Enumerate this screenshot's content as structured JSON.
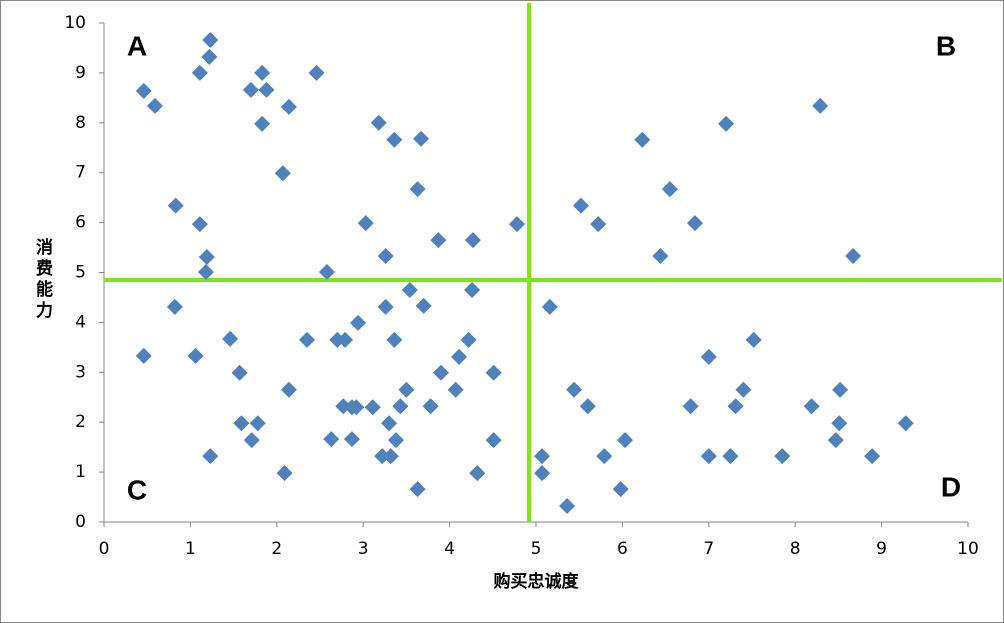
{
  "chart_data": {
    "type": "scatter",
    "xlabel": "购买忠诚度",
    "ylabel": "消费能力",
    "xlim": [
      0,
      10
    ],
    "ylim": [
      0,
      10
    ],
    "xticks": [
      0,
      1,
      2,
      3,
      4,
      5,
      6,
      7,
      8,
      9,
      10
    ],
    "yticks": [
      0,
      1,
      2,
      3,
      4,
      5,
      6,
      7,
      8,
      9,
      10
    ],
    "grid": false,
    "color": "#4f81bd",
    "reference_lines": {
      "x": 4.92,
      "y": 4.85,
      "color": "#80e31f"
    },
    "annotations": [
      {
        "text": "A",
        "corner": "top-left"
      },
      {
        "text": "B",
        "corner": "top-right"
      },
      {
        "text": "C",
        "corner": "bottom-left"
      },
      {
        "text": "D",
        "corner": "bottom-right"
      }
    ],
    "annotation_color": "#ffc000",
    "x": [
      1.23,
      1.22,
      0.46,
      0.59,
      1.11,
      1.83,
      1.7,
      1.88,
      2.14,
      1.83,
      2.46,
      3.18,
      3.36,
      3.67,
      2.07,
      0.83,
      1.11,
      1.19,
      1.18,
      2.58,
      3.03,
      3.26,
      3.63,
      3.87,
      4.27,
      4.78,
      3.54,
      3.7,
      4.26,
      3.26,
      0.82,
      0.46,
      1.06,
      1.46,
      2.35,
      2.7,
      2.79,
      2.94,
      3.36,
      4.22,
      4.11,
      3.9,
      4.51,
      1.57,
      2.14,
      3.5,
      4.07,
      3.43,
      3.78,
      2.77,
      2.87,
      2.92,
      3.11,
      1.59,
      1.78,
      3.3,
      1.71,
      2.63,
      2.87,
      3.38,
      4.51,
      1.23,
      3.22,
      3.32,
      2.09,
      4.32,
      3.63,
      5.07,
      5.07,
      5.16,
      5.36,
      5.44,
      5.6,
      5.79,
      6.03,
      5.98,
      5.52,
      5.72,
      6.23,
      6.55,
      6.44,
      6.84,
      7.2,
      8.29,
      8.67,
      7.0,
      7.52,
      7.4,
      7.31,
      6.79,
      7.0,
      7.25,
      7.85,
      8.19,
      8.52,
      8.51,
      8.47,
      8.89,
      9.28
    ],
    "values": [
      9.66,
      9.32,
      8.64,
      8.34,
      9.0,
      9.0,
      8.66,
      8.66,
      8.32,
      7.98,
      9.0,
      8.0,
      7.66,
      7.68,
      6.99,
      6.34,
      5.97,
      5.31,
      5.01,
      5.01,
      5.99,
      5.33,
      6.67,
      5.65,
      5.65,
      5.97,
      4.65,
      4.33,
      4.65,
      4.31,
      4.31,
      3.33,
      3.33,
      3.67,
      3.65,
      3.65,
      3.65,
      3.99,
      3.65,
      3.65,
      3.31,
      2.99,
      2.99,
      2.99,
      2.65,
      2.65,
      2.65,
      2.32,
      2.32,
      2.32,
      2.3,
      2.3,
      2.3,
      1.98,
      1.98,
      1.98,
      1.64,
      1.66,
      1.66,
      1.64,
      1.64,
      1.32,
      1.32,
      1.32,
      0.98,
      0.98,
      0.66,
      1.32,
      0.98,
      4.31,
      0.32,
      2.65,
      2.32,
      1.32,
      1.64,
      0.66,
      6.34,
      5.97,
      7.66,
      6.67,
      5.33,
      5.99,
      7.98,
      8.34,
      5.33,
      3.31,
      3.65,
      2.65,
      2.32,
      2.32,
      1.32,
      1.32,
      1.32,
      2.32,
      2.65,
      1.98,
      1.64,
      1.32,
      1.98
    ]
  }
}
